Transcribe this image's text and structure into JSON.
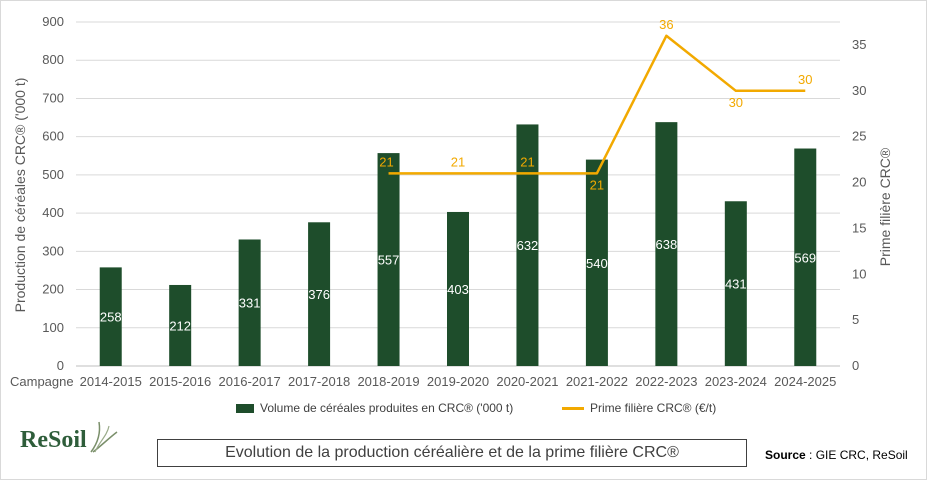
{
  "chart_data": {
    "type": "bar",
    "title": "Evolution de la production céréalière et de la prime filière CRC®",
    "x_axis_prefix": "Campagne",
    "categories": [
      "2014-2015",
      "2015-2016",
      "2016-2017",
      "2017-2018",
      "2018-2019",
      "2019-2020",
      "2020-2021",
      "2021-2022",
      "2022-2023",
      "2023-2024",
      "2024-2025"
    ],
    "ylabel": "Production de céréales CRC® ('000 t)",
    "ylabel_right": "Prime filière CRC®",
    "ylim": [
      0,
      900
    ],
    "y_ticks": [
      0,
      100,
      200,
      300,
      400,
      500,
      600,
      700,
      800,
      900
    ],
    "ylim_right": [
      0,
      37.5
    ],
    "y_ticks_right": [
      0,
      5,
      10,
      15,
      20,
      25,
      30,
      35
    ],
    "series": [
      {
        "name": "Volume de céréales produites en CRC® ('000 t)",
        "type": "bar",
        "axis": "left",
        "color": "#1e4d2b",
        "values": [
          258,
          212,
          331,
          376,
          557,
          403,
          632,
          540,
          638,
          431,
          569
        ]
      },
      {
        "name": "Prime filière CRC® (€/t)",
        "type": "line",
        "axis": "right",
        "color": "#f2a900",
        "values": [
          null,
          null,
          null,
          null,
          21,
          21,
          21,
          21,
          36,
          30,
          30
        ]
      }
    ],
    "grid": true,
    "legend_position": "bottom"
  },
  "logo": {
    "text": "ReSoil"
  },
  "source": {
    "label": "Source",
    "text": " : GIE CRC, ReSoil"
  }
}
